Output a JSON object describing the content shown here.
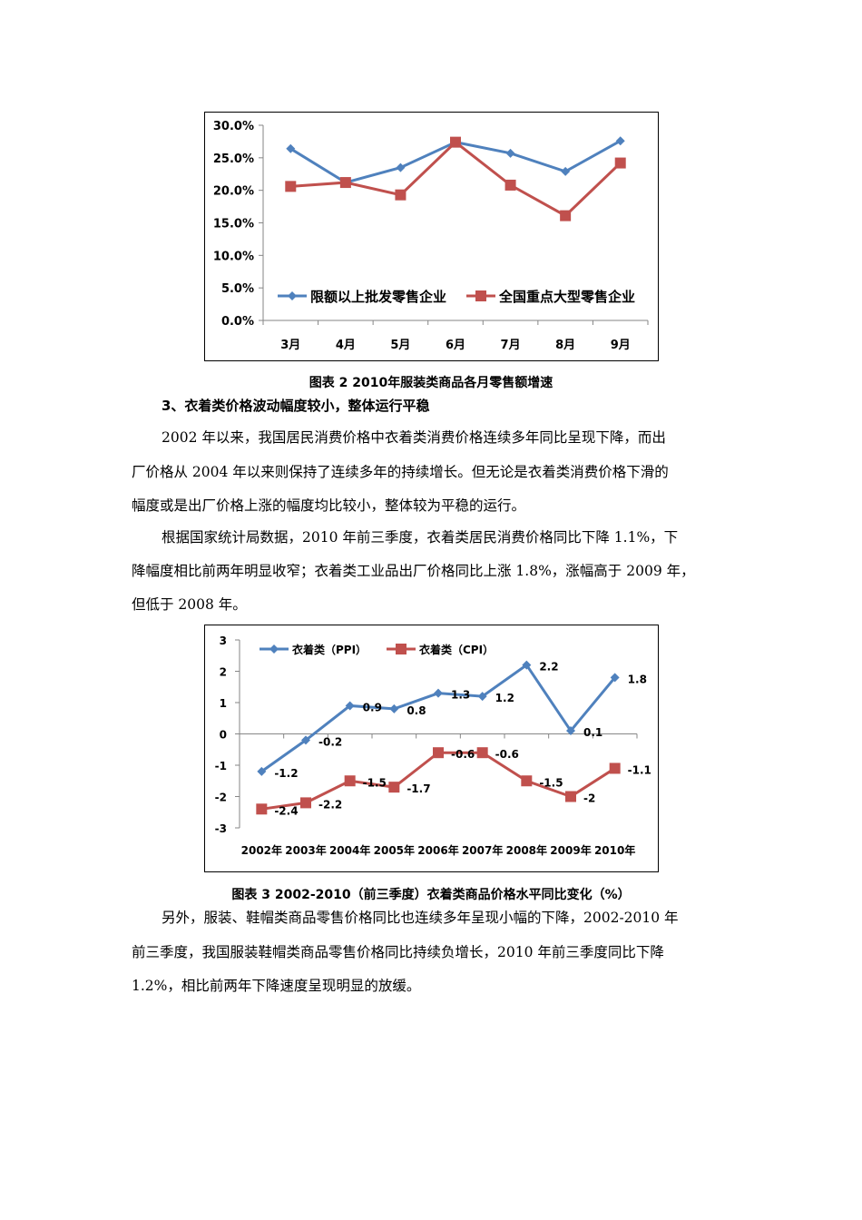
{
  "chart_data": [
    {
      "type": "line",
      "title": "图表 2 2010年服装类商品各月零售额增速",
      "categories": [
        "3月",
        "4月",
        "5月",
        "6月",
        "7月",
        "8月",
        "9月"
      ],
      "series": [
        {
          "name": "限额以上批发零售企业",
          "color": "#4F81BD",
          "marker": "diamond",
          "values": [
            26.4,
            21.2,
            23.5,
            27.4,
            25.7,
            22.9,
            27.6
          ]
        },
        {
          "name": "全国重点大型零售企业",
          "color": "#C0504D",
          "marker": "square",
          "values": [
            20.6,
            21.2,
            19.3,
            27.4,
            20.8,
            16.1,
            24.2
          ]
        }
      ],
      "yticks": [
        "0.0%",
        "5.0%",
        "10.0%",
        "15.0%",
        "20.0%",
        "25.0%",
        "30.0%"
      ],
      "ylim": [
        0,
        30
      ],
      "xlabel": "",
      "ylabel": "",
      "grid": false,
      "legend_position": "inside-bottom"
    },
    {
      "type": "line",
      "title": "图表 3 2002-2010（前三季度）衣着类商品价格水平同比变化（%）",
      "categories": [
        "2002年",
        "2003年",
        "2004年",
        "2005年",
        "2006年",
        "2007年",
        "2008年",
        "2009年",
        "2010年"
      ],
      "series": [
        {
          "name": "衣着类（PPI）",
          "color": "#4F81BD",
          "marker": "diamond",
          "values": [
            -1.2,
            -0.2,
            0.9,
            0.8,
            1.3,
            1.2,
            2.2,
            0.1,
            1.8
          ],
          "labels": [
            "-1.2",
            "-0.2",
            "0.9",
            "0.8",
            "1.3",
            "1.2",
            "2.2",
            "0.1",
            "1.8"
          ]
        },
        {
          "name": "衣着类（CPI）",
          "color": "#C0504D",
          "marker": "square",
          "values": [
            -2.4,
            -2.2,
            -1.5,
            -1.7,
            -0.6,
            -0.6,
            -1.5,
            -2.0,
            -1.1
          ],
          "labels": [
            "-2.4",
            "-2.2",
            "-1.5",
            "-1.7",
            "-0.6",
            "-0.6",
            "-1.5",
            "-2",
            "-1.1"
          ]
        }
      ],
      "yticks": [
        "-3",
        "-2",
        "-1",
        "0",
        "1",
        "2",
        "3"
      ],
      "ylim": [
        -3,
        3
      ],
      "xlabel": "",
      "ylabel": "",
      "grid": false,
      "legend_position": "top"
    }
  ],
  "captions": {
    "chart2": "图表 2  2010年服装类商品各月零售额增速",
    "chart3": "图表 3  2002-2010（前三季度）衣着类商品价格水平同比变化（%）"
  },
  "section_heading": "3、衣着类价格波动幅度较小，整体运行平稳",
  "paragraphs": {
    "p1_lines": [
      "2002 年以来，我国居民消费价格中衣着类消费价格连续多年同比呈现下降，而出",
      "厂价格从 2004 年以来则保持了连续多年的持续增长。但无论是衣着类消费价格下滑的",
      "幅度或是出厂价格上涨的幅度均比较小，整体较为平稳的运行。"
    ],
    "p2_lines": [
      "根据国家统计局数据，2010 年前三季度，衣着类居民消费价格同比下降 1.1%，下",
      "降幅度相比前两年明显收窄；衣着类工业品出厂价格同比上涨 1.8%，涨幅高于 2009 年，",
      "但低于 2008 年。"
    ],
    "p3_lines": [
      "另外，服装、鞋帽类商品零售价格同比也连续多年呈现小幅的下降，2002-2010 年",
      "前三季度，我国服装鞋帽类商品零售价格同比持续负增长，2010 年前三季度同比下降",
      "1.2%，相比前两年下降速度呈现明显的放缓。"
    ]
  }
}
